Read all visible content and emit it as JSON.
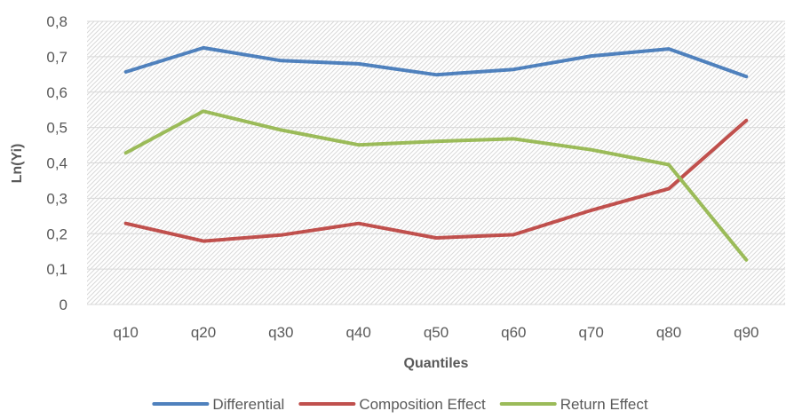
{
  "chart_data": {
    "type": "line",
    "title": "",
    "xlabel": "Quantiles",
    "ylabel": "Ln(Yi)",
    "categories": [
      "q10",
      "q20",
      "q30",
      "q40",
      "q50",
      "q60",
      "q70",
      "q80",
      "q90"
    ],
    "ylim": [
      0,
      0.8
    ],
    "yticks": [
      "0",
      "0,1",
      "0,2",
      "0,3",
      "0,4",
      "0,5",
      "0,6",
      "0,7",
      "0,8"
    ],
    "ytick_values": [
      0,
      0.1,
      0.2,
      0.3,
      0.4,
      0.5,
      0.6,
      0.7,
      0.8
    ],
    "grid": true,
    "legend": "bottom",
    "series": [
      {
        "name": "Differential",
        "color": "#4f81bd",
        "values": [
          0.657,
          0.725,
          0.689,
          0.68,
          0.649,
          0.664,
          0.702,
          0.722,
          0.644
        ]
      },
      {
        "name": "Composition Effect",
        "color": "#c0504d",
        "values": [
          0.229,
          0.179,
          0.196,
          0.229,
          0.188,
          0.197,
          0.266,
          0.327,
          0.52
        ]
      },
      {
        "name": "Return Effect",
        "color": "#9bbb59",
        "values": [
          0.428,
          0.546,
          0.493,
          0.451,
          0.461,
          0.468,
          0.437,
          0.395,
          0.126
        ]
      }
    ]
  }
}
